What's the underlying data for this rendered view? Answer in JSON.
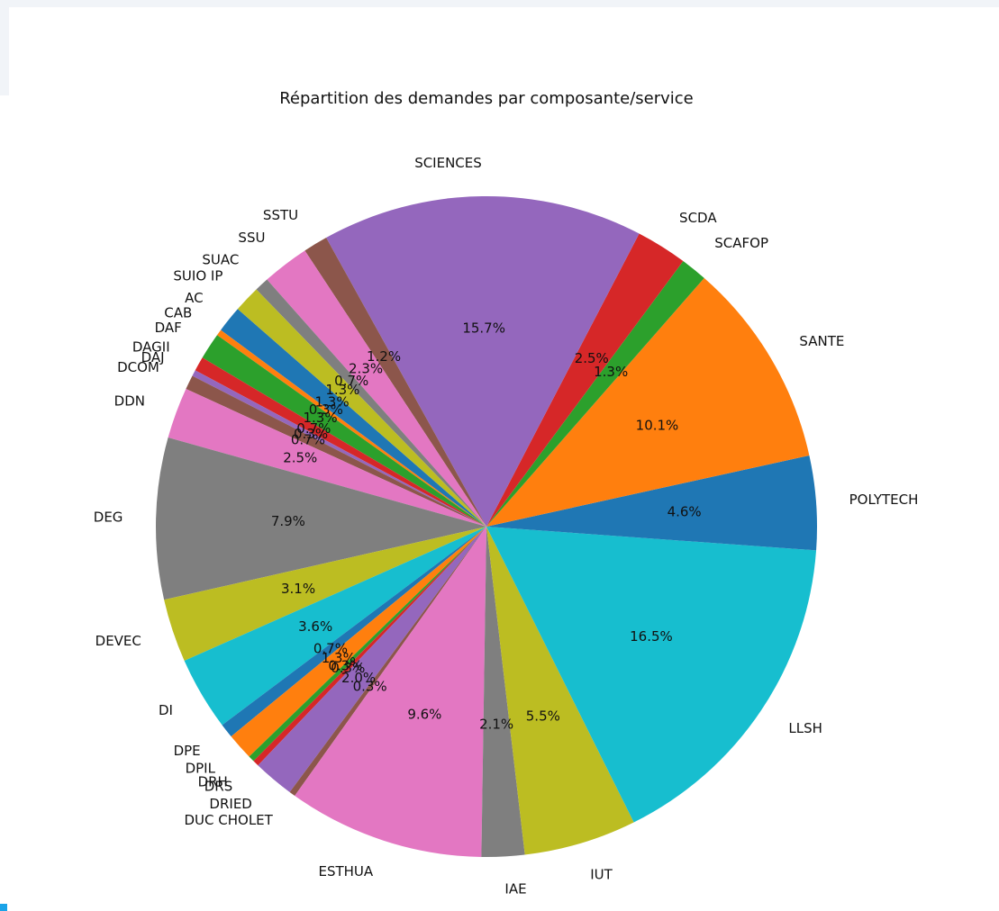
{
  "chart_data": {
    "type": "pie",
    "title": "Répartition des demandes par composante/service",
    "categories": [
      "AC",
      "CAB",
      "DAF",
      "DAGII",
      "DAJ",
      "DCOM",
      "DDN",
      "DEG",
      "DEVEC",
      "DI",
      "DPE",
      "DPIL",
      "DRH",
      "DRS",
      "DRIED",
      "DUC CHOLET",
      "ESTHUA",
      "IAE",
      "IUT",
      "LLSH",
      "POLYTECH",
      "SANTE",
      "SCAFOP",
      "SCDA",
      "SCIENCES",
      "SSTU",
      "SSU",
      "SUAC",
      "SUIO IP"
    ],
    "values": [
      1.3,
      0.3,
      1.3,
      0.7,
      0.3,
      0.7,
      2.5,
      7.9,
      3.1,
      3.6,
      0.7,
      1.3,
      0.3,
      0.3,
      2.0,
      0.3,
      9.6,
      2.1,
      5.5,
      16.5,
      4.6,
      10.1,
      1.3,
      2.5,
      15.7,
      1.2,
      2.3,
      0.7,
      1.3
    ],
    "value_labels": [
      "1.3%",
      "0.3%",
      "1.3%",
      "0.7%",
      "0.3%",
      "0.7%",
      "2.5%",
      "7.9%",
      "3.1%",
      "3.6%",
      "0.7%",
      "1.3%",
      "0.3%",
      "0.3%",
      "2.0%",
      "0.3%",
      "9.6%",
      "2.1%",
      "5.5%",
      "16.5%",
      "4.6%",
      "10.1%",
      "1.3%",
      "2.5%",
      "15.7%",
      "1.2%",
      "2.3%",
      "0.7%",
      "1.3%"
    ],
    "colors": [
      "#1f77b4",
      "#ff7f0e",
      "#2ca02c",
      "#d62728",
      "#9467bd",
      "#8c564b",
      "#e377c2",
      "#7f7f7f",
      "#bcbd22",
      "#17becf",
      "#1f77b4",
      "#ff7f0e",
      "#2ca02c",
      "#d62728",
      "#9467bd",
      "#8c564b",
      "#e377c2",
      "#7f7f7f",
      "#bcbd22",
      "#17becf",
      "#1f77b4",
      "#ff7f0e",
      "#2ca02c",
      "#d62728",
      "#9467bd",
      "#8c564b",
      "#e377c2",
      "#7f7f7f",
      "#bcbd22"
    ]
  }
}
